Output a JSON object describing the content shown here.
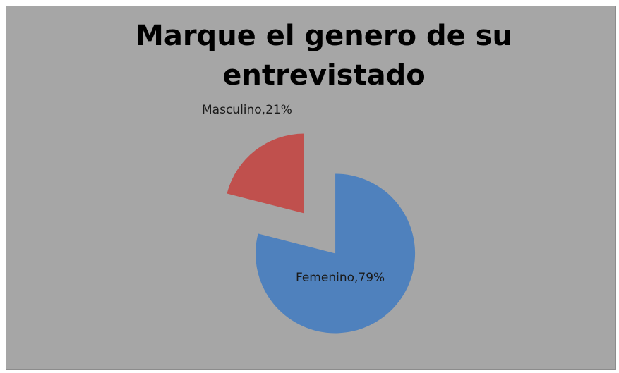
{
  "chart_data": {
    "type": "pie",
    "title": "Marque el genero de su entrevistado",
    "categories": [
      "Masculino",
      "Femenino"
    ],
    "values": [
      21,
      79
    ],
    "value_labels": [
      "Masculino,21%",
      "Femenino,79%"
    ],
    "colors": [
      "#c0504d",
      "#4f81bd"
    ]
  }
}
